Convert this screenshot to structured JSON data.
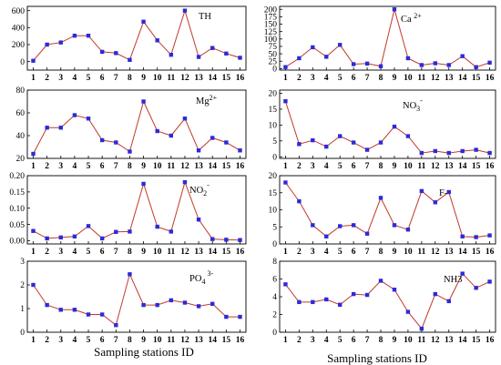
{
  "figure": {
    "xlabel_left": "Sampling stations ID",
    "xlabel_right": "Sampling stations ID",
    "line_color": "#c0392b",
    "marker_color": "#2b2bd9"
  },
  "chart_data": [
    {
      "type": "line",
      "label": "TH",
      "x": [
        1,
        2,
        3,
        4,
        5,
        6,
        7,
        8,
        9,
        10,
        11,
        12,
        13,
        14,
        15,
        16
      ],
      "values": [
        10,
        200,
        225,
        305,
        305,
        115,
        100,
        20,
        470,
        250,
        80,
        600,
        55,
        160,
        95,
        45
      ],
      "ylim": [
        -100,
        650
      ],
      "yticks": [
        0,
        200,
        400,
        600
      ]
    },
    {
      "type": "line",
      "label": "Ca 2+",
      "x": [
        1,
        2,
        3,
        4,
        5,
        6,
        7,
        8,
        9,
        10,
        11,
        12,
        13,
        14,
        15,
        16
      ],
      "values": [
        5,
        35,
        72,
        40,
        80,
        15,
        17,
        8,
        200,
        35,
        12,
        18,
        12,
        42,
        5,
        20
      ],
      "ylim": [
        -5,
        210
      ],
      "yticks": [
        0,
        25,
        50,
        75,
        100,
        125,
        150,
        175,
        200
      ]
    },
    {
      "type": "line",
      "label": "Mg2+",
      "x": [
        1,
        2,
        3,
        4,
        5,
        6,
        7,
        8,
        9,
        10,
        11,
        12,
        13,
        14,
        15,
        16
      ],
      "values": [
        24,
        47,
        47,
        58,
        55,
        36,
        34,
        26,
        70,
        44,
        40,
        55,
        27,
        38,
        34,
        27
      ],
      "ylim": [
        20,
        80
      ],
      "yticks": [
        20,
        40,
        60,
        80
      ]
    },
    {
      "type": "line",
      "label": "NO3-",
      "x": [
        1,
        2,
        3,
        4,
        5,
        6,
        7,
        8,
        9,
        10,
        11,
        12,
        13,
        14,
        15,
        16
      ],
      "values": [
        17.5,
        4,
        5.2,
        3.2,
        6.5,
        4.5,
        2.2,
        4.5,
        9.5,
        6.5,
        1.2,
        1.8,
        1.2,
        1.8,
        2.2,
        1.2
      ],
      "ylim": [
        -0.5,
        21
      ],
      "yticks": [
        0,
        5,
        10,
        15,
        20
      ]
    },
    {
      "type": "line",
      "label": "NO2-",
      "x": [
        1,
        2,
        3,
        4,
        5,
        6,
        7,
        8,
        9,
        10,
        11,
        12,
        13,
        14,
        15,
        16
      ],
      "values": [
        0.03,
        0.007,
        0.01,
        0.013,
        0.045,
        0.007,
        0.027,
        0.028,
        0.175,
        0.043,
        0.028,
        0.18,
        0.065,
        0.005,
        0.003,
        0.002
      ],
      "ylim": [
        -0.01,
        0.2
      ],
      "yticks": [
        0.0,
        0.05,
        0.1,
        0.15,
        0.2
      ],
      "decimals": 2
    },
    {
      "type": "line",
      "label": "F-",
      "x": [
        1,
        2,
        3,
        4,
        5,
        6,
        7,
        8,
        9,
        10,
        11,
        12,
        13,
        14,
        15,
        16
      ],
      "values": [
        18,
        12.5,
        5.5,
        2.2,
        5.2,
        5.5,
        3,
        13.5,
        5.5,
        4.2,
        15.5,
        12.2,
        15.2,
        2.2,
        2,
        2.5
      ],
      "ylim": [
        0,
        20
      ],
      "yticks": [
        0,
        5,
        10,
        15,
        20
      ]
    },
    {
      "type": "line",
      "label": "PO4 3-",
      "x": [
        1,
        2,
        3,
        4,
        5,
        6,
        7,
        8,
        9,
        10,
        11,
        12,
        13,
        14,
        15,
        16
      ],
      "values": [
        2.0,
        1.15,
        0.95,
        0.95,
        0.75,
        0.75,
        0.3,
        2.45,
        1.15,
        1.15,
        1.35,
        1.25,
        1.1,
        1.2,
        0.65,
        0.65
      ],
      "ylim": [
        0,
        3
      ],
      "yticks": [
        0,
        1,
        2,
        3
      ]
    },
    {
      "type": "line",
      "label": "NH3",
      "x": [
        1,
        2,
        3,
        4,
        5,
        6,
        7,
        8,
        9,
        10,
        11,
        12,
        13,
        14,
        15,
        16
      ],
      "values": [
        5.4,
        3.4,
        3.4,
        3.7,
        3.1,
        4.3,
        4.2,
        5.8,
        4.8,
        2.3,
        0.4,
        4.3,
        3.5,
        6.6,
        5,
        5.7
      ],
      "ylim": [
        0,
        8
      ],
      "yticks": [
        0,
        2,
        4,
        6,
        8
      ]
    }
  ]
}
